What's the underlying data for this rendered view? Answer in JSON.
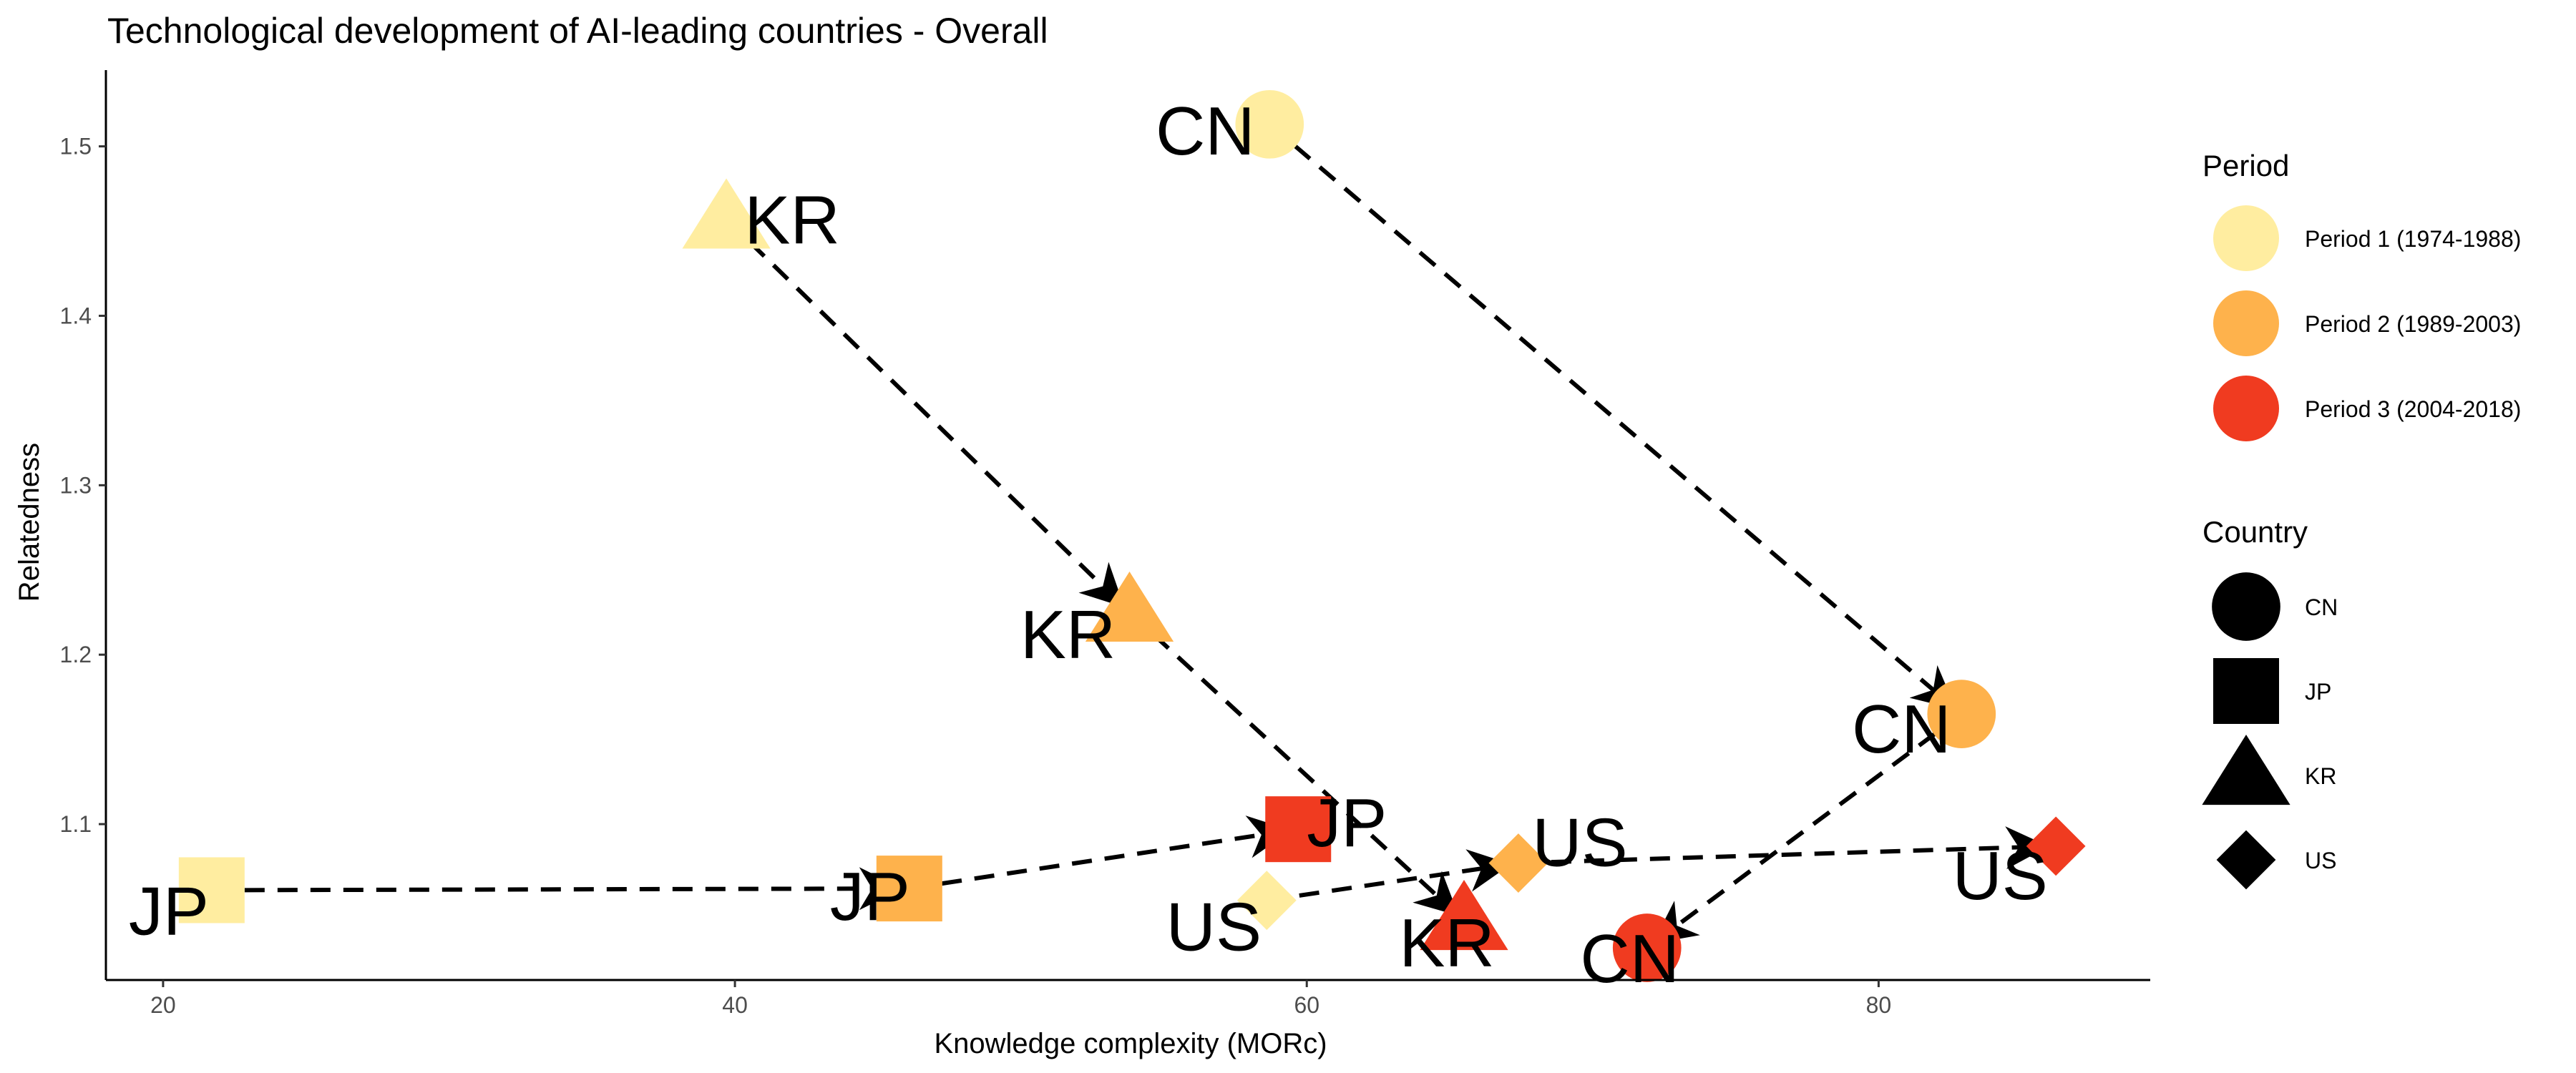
{
  "chart_data": {
    "type": "scatter",
    "title": "Technological development of AI-leading countries - Overall",
    "xlabel": "Knowledge complexity (MORc)",
    "ylabel": "Relatedness",
    "xlim": [
      18,
      89.5
    ],
    "ylim": [
      1.008,
      1.545
    ],
    "xticks": [
      "20",
      "40",
      "60",
      "80"
    ],
    "yticks": [
      "1.1",
      "1.2",
      "1.3",
      "1.4",
      "1.5"
    ],
    "grid": false,
    "legend_position": "right",
    "period_colors": {
      "Period 1 (1974-1988)": "#FFEDA0",
      "Period 2 (1989-2003)": "#FEB24C",
      "Period 3 (2004-2018)": "#F03B20"
    },
    "legends": {
      "period": {
        "title": "Period",
        "items": [
          "Period 1 (1974-1988)",
          "Period 2 (1989-2003)",
          "Period 3 (2004-2018)"
        ]
      },
      "country": {
        "title": "Country",
        "items": [
          {
            "label": "CN",
            "shape": "circle"
          },
          {
            "label": "JP",
            "shape": "square"
          },
          {
            "label": "KR",
            "shape": "triangle"
          },
          {
            "label": "US",
            "shape": "diamond"
          }
        ]
      }
    },
    "series": [
      {
        "name": "CN",
        "shape": "circle",
        "points": [
          {
            "period": "Period 1 (1974-1988)",
            "x": 58.7,
            "y": 1.513,
            "label": "CN"
          },
          {
            "period": "Period 2 (1989-2003)",
            "x": 82.9,
            "y": 1.165,
            "label": "CN"
          },
          {
            "period": "Period 3 (2004-2018)",
            "x": 71.9,
            "y": 1.027,
            "label": "CN"
          }
        ]
      },
      {
        "name": "JP",
        "shape": "square",
        "points": [
          {
            "period": "Period 1 (1974-1988)",
            "x": 21.7,
            "y": 1.061,
            "label": "JP"
          },
          {
            "period": "Period 2 (1989-2003)",
            "x": 46.1,
            "y": 1.062,
            "label": "JP"
          },
          {
            "period": "Period 3 (2004-2018)",
            "x": 59.7,
            "y": 1.097,
            "label": "JP"
          }
        ]
      },
      {
        "name": "KR",
        "shape": "triangle",
        "points": [
          {
            "period": "Period 1 (1974-1988)",
            "x": 39.7,
            "y": 1.457,
            "label": "KR"
          },
          {
            "period": "Period 2 (1989-2003)",
            "x": 53.8,
            "y": 1.225,
            "label": "KR"
          },
          {
            "period": "Period 3 (2004-2018)",
            "x": 65.5,
            "y": 1.043,
            "label": "KR"
          }
        ]
      },
      {
        "name": "US",
        "shape": "diamond",
        "points": [
          {
            "period": "Period 1 (1974-1988)",
            "x": 58.6,
            "y": 1.055,
            "label": "US"
          },
          {
            "period": "Period 2 (1989-2003)",
            "x": 67.4,
            "y": 1.077,
            "label": "US"
          },
          {
            "period": "Period 3 (2004-2018)",
            "x": 86.2,
            "y": 1.087,
            "label": "US"
          }
        ]
      }
    ]
  }
}
